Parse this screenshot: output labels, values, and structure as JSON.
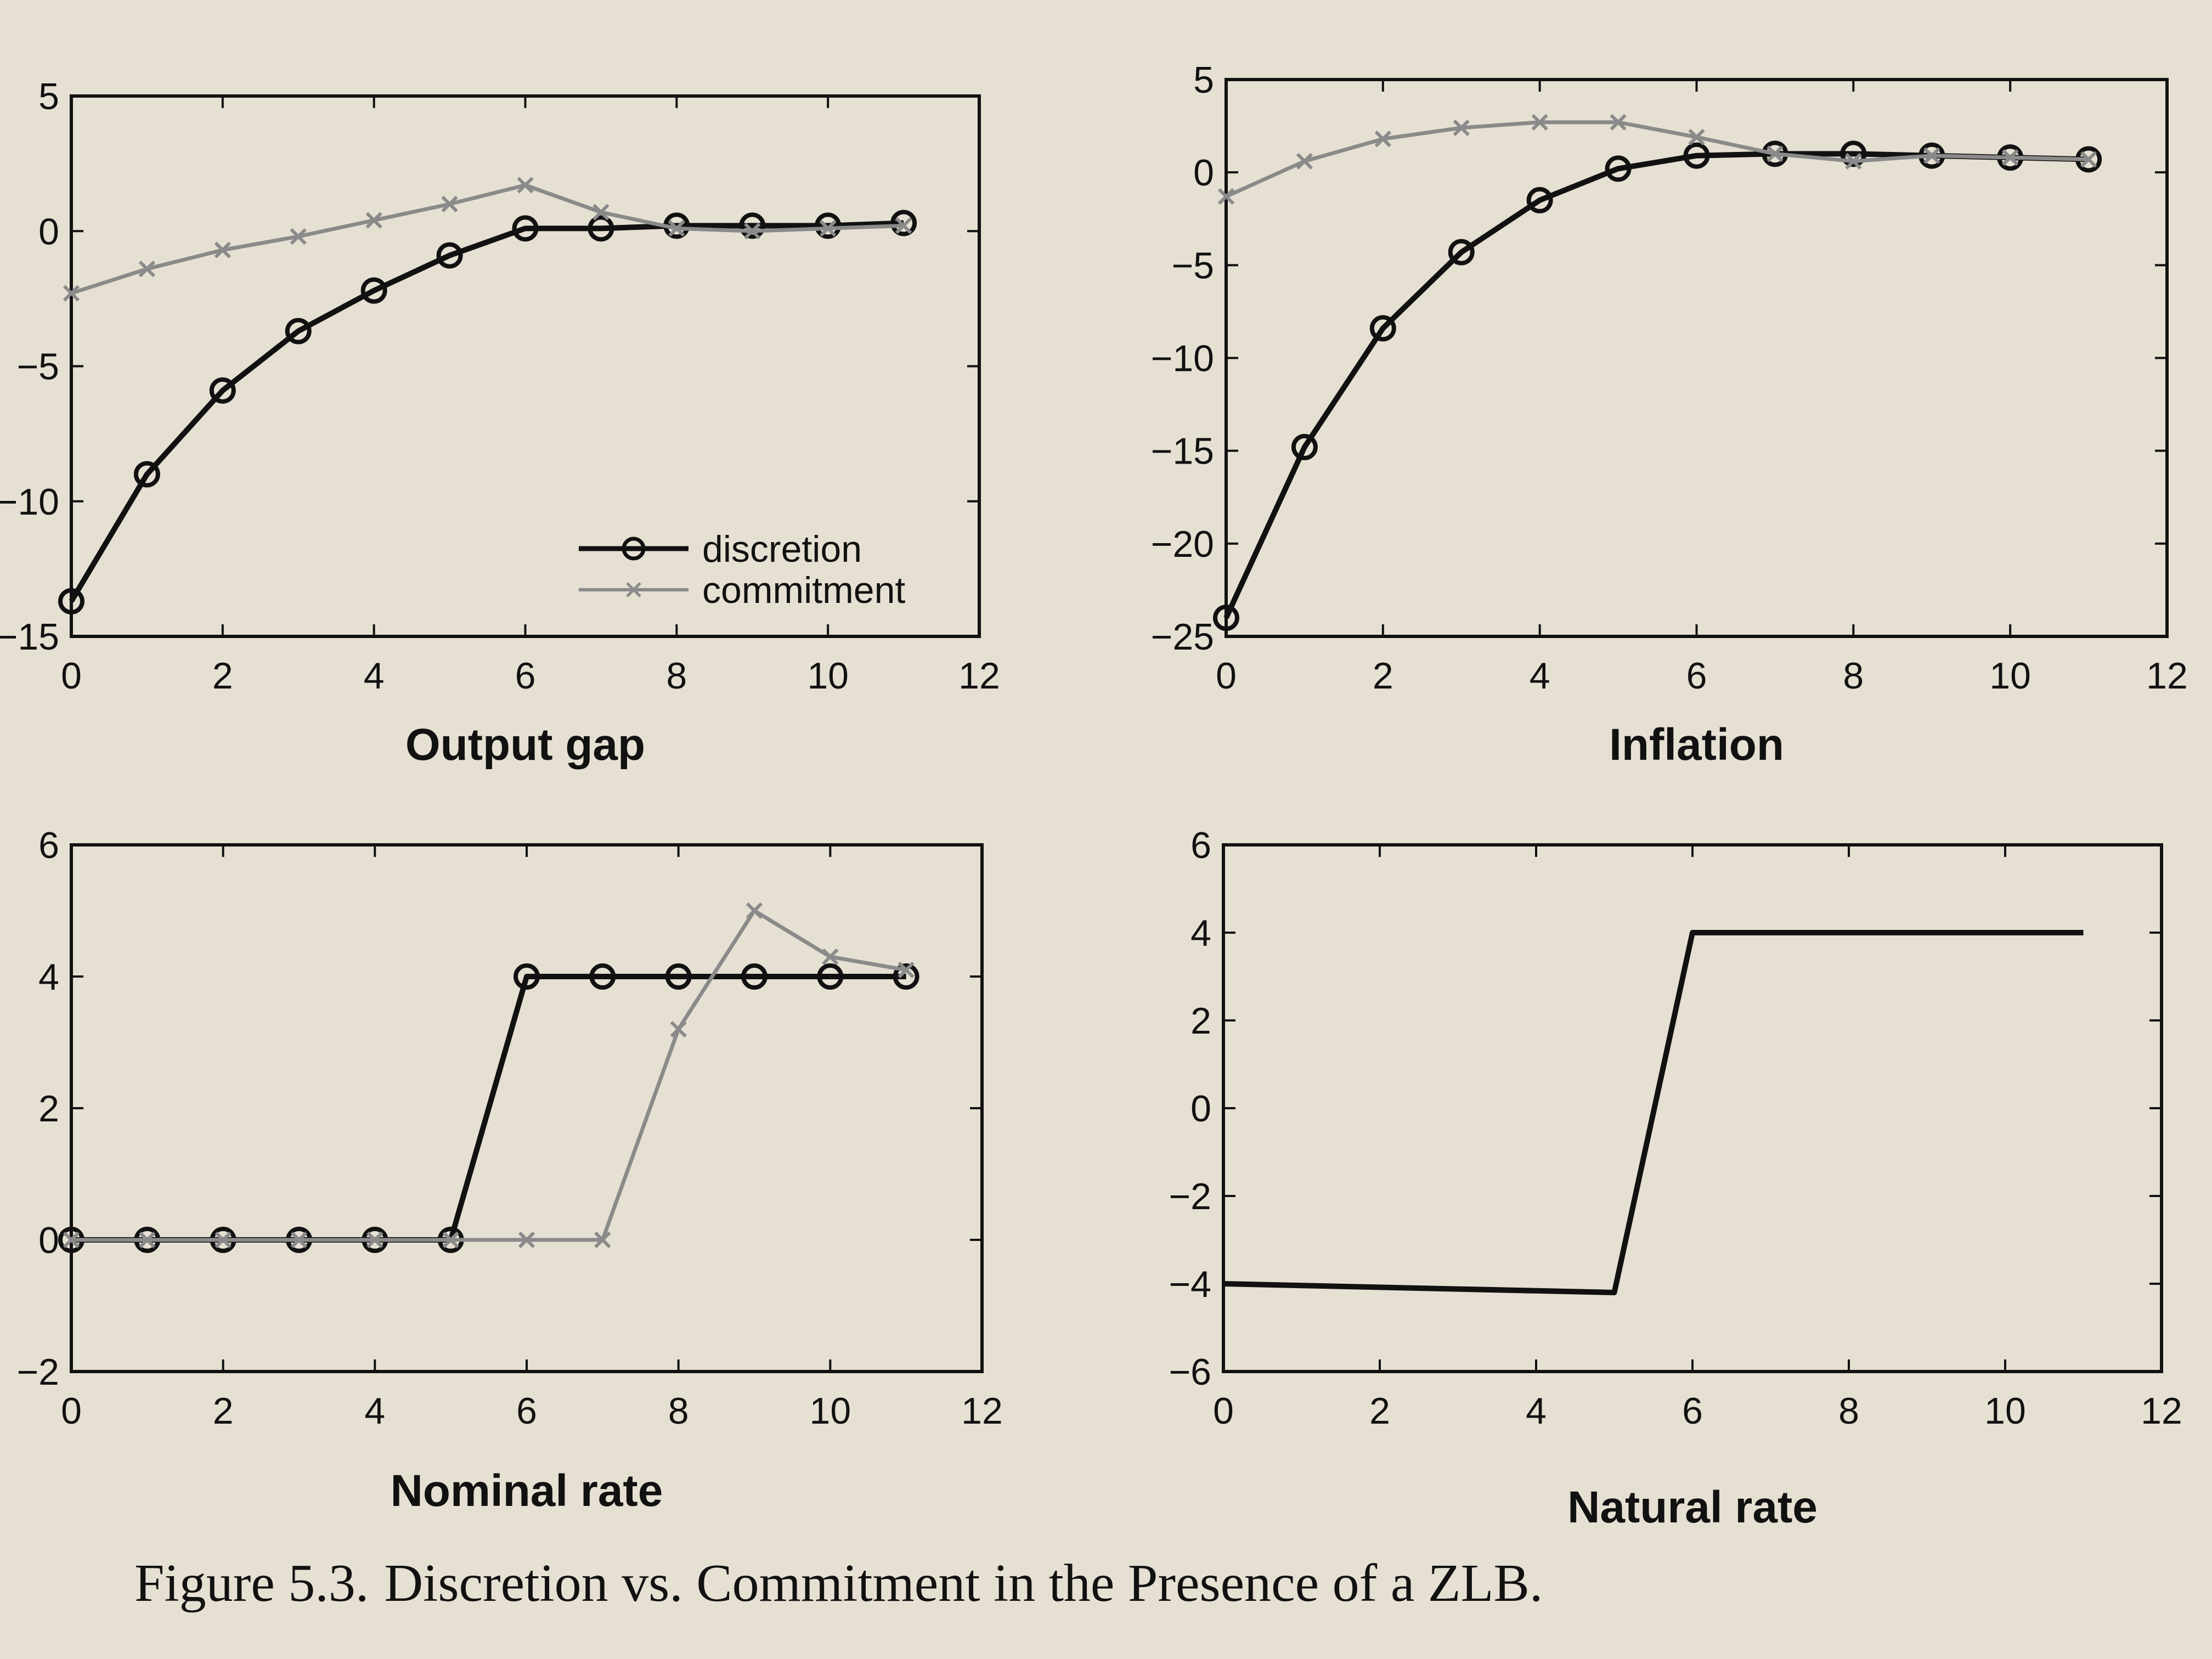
{
  "figure": {
    "caption_label": "Figure 5.3.",
    "caption_text": "Discretion vs. Commitment in the Presence of a ZLB."
  },
  "colors": {
    "paper": "#e6e0d3",
    "discretion": "#111111",
    "commitment": "#8a8a8a",
    "frame": "#111111"
  },
  "chart_data": [
    {
      "id": "output-gap",
      "type": "line",
      "xlabel": "Output gap",
      "ylabel": "",
      "xlim": [
        0,
        12
      ],
      "ylim": [
        -15,
        5
      ],
      "x_ticks": [
        0,
        2,
        4,
        6,
        8,
        10,
        12
      ],
      "y_ticks": [
        -15,
        -10,
        -5,
        0,
        5
      ],
      "legend": {
        "position": "bottom-right",
        "entries": [
          "discretion",
          "commitment"
        ]
      },
      "series": [
        {
          "name": "discretion",
          "marker": "circle",
          "x": [
            0,
            1,
            2,
            3,
            4,
            5,
            6,
            7,
            8,
            9,
            10,
            11
          ],
          "values": [
            -13.7,
            -9.0,
            -5.9,
            -3.7,
            -2.2,
            -0.9,
            0.1,
            0.1,
            0.2,
            0.2,
            0.2,
            0.3
          ]
        },
        {
          "name": "commitment",
          "marker": "x",
          "x": [
            0,
            1,
            2,
            3,
            4,
            5,
            6,
            7,
            8,
            9,
            10,
            11
          ],
          "values": [
            -2.3,
            -1.4,
            -0.7,
            -0.2,
            0.4,
            1.0,
            1.7,
            0.7,
            0.1,
            0.0,
            0.1,
            0.2
          ]
        }
      ]
    },
    {
      "id": "inflation",
      "type": "line",
      "xlabel": "Inflation",
      "ylabel": "",
      "xlim": [
        0,
        12
      ],
      "ylim": [
        -25,
        5
      ],
      "x_ticks": [
        0,
        2,
        4,
        6,
        8,
        10,
        12
      ],
      "y_ticks": [
        -25,
        -20,
        -15,
        -10,
        -5,
        0,
        5
      ],
      "series": [
        {
          "name": "discretion",
          "marker": "circle",
          "x": [
            0,
            1,
            2,
            3,
            4,
            5,
            6,
            7,
            8,
            9,
            10,
            11
          ],
          "values": [
            -24.0,
            -14.8,
            -8.4,
            -4.3,
            -1.5,
            0.2,
            0.9,
            1.0,
            1.0,
            0.9,
            0.8,
            0.7
          ]
        },
        {
          "name": "commitment",
          "marker": "x",
          "x": [
            0,
            1,
            2,
            3,
            4,
            5,
            6,
            7,
            8,
            9,
            10,
            11
          ],
          "values": [
            -1.3,
            0.6,
            1.8,
            2.4,
            2.7,
            2.7,
            1.9,
            1.0,
            0.6,
            0.9,
            0.8,
            0.7
          ]
        }
      ]
    },
    {
      "id": "nominal-rate",
      "type": "line",
      "xlabel": "Nominal rate",
      "ylabel": "",
      "xlim": [
        0,
        12
      ],
      "ylim": [
        -2,
        6
      ],
      "x_ticks": [
        0,
        2,
        4,
        6,
        8,
        10,
        12
      ],
      "y_ticks": [
        -2,
        0,
        2,
        4,
        6
      ],
      "series": [
        {
          "name": "discretion",
          "marker": "circle",
          "x": [
            0,
            1,
            2,
            3,
            4,
            5,
            6,
            7,
            8,
            9,
            10,
            11
          ],
          "values": [
            0,
            0,
            0,
            0,
            0,
            0,
            4,
            4,
            4,
            4,
            4,
            4
          ]
        },
        {
          "name": "commitment",
          "marker": "x",
          "x": [
            0,
            1,
            2,
            3,
            4,
            5,
            6,
            7,
            8,
            9,
            10,
            11
          ],
          "values": [
            0,
            0,
            0,
            0,
            0,
            0,
            0,
            0,
            3.2,
            5.0,
            4.3,
            4.1
          ]
        }
      ]
    },
    {
      "id": "natural-rate",
      "type": "line",
      "xlabel": "Natural rate",
      "ylabel": "",
      "xlim": [
        0,
        12
      ],
      "ylim": [
        -6,
        6
      ],
      "x_ticks": [
        0,
        2,
        4,
        6,
        8,
        10,
        12
      ],
      "y_ticks": [
        -6,
        -4,
        -2,
        0,
        2,
        4,
        6
      ],
      "series": [
        {
          "marker": "none",
          "x": [
            0,
            5,
            6,
            11
          ],
          "values": [
            -4,
            -4.2,
            4,
            4
          ]
        }
      ]
    }
  ]
}
